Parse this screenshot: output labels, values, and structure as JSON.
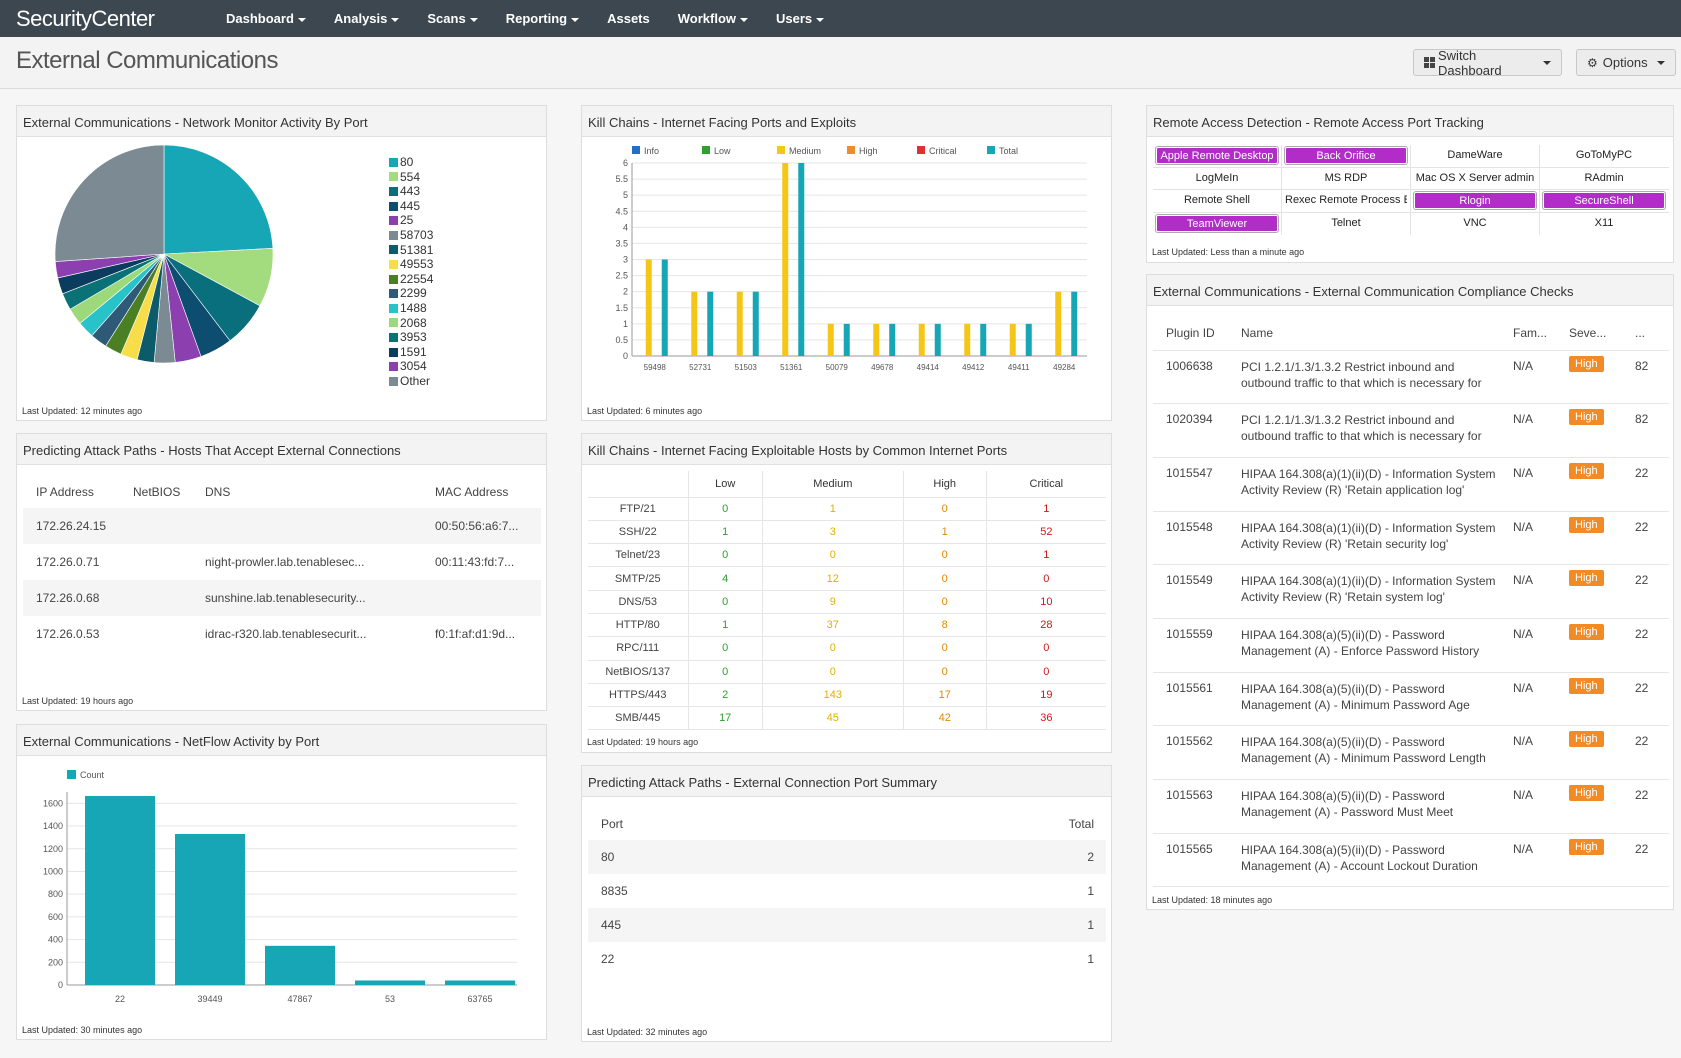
{
  "app": {
    "logo": "SecurityCenter",
    "page_title": "External Communications"
  },
  "nav": [
    "Dashboard",
    "Analysis",
    "Scans",
    "Reporting",
    "Assets",
    "Workflow",
    "Users"
  ],
  "nav_dropdown": [
    true,
    true,
    true,
    true,
    false,
    true,
    true
  ],
  "toolbar": {
    "switch_dashboard": "Switch Dashboard",
    "options": "Options"
  },
  "pie_panel": {
    "title": "External Communications - Network Monitor Activity By Port",
    "updated": "Last Updated: 12 minutes ago",
    "legend": [
      "80",
      "554",
      "443",
      "445",
      "25",
      "58703",
      "51381",
      "49553",
      "22554",
      "2299",
      "1488",
      "2068",
      "3953",
      "1591",
      "3054",
      "Other"
    ],
    "colors": [
      "#17a6b6",
      "#a3dc7f",
      "#0a6f7c",
      "#0c4d70",
      "#8c40b0",
      "#7b8a93",
      "#0c5b6a",
      "#f7dd4a",
      "#4b7f24",
      "#2e5a78",
      "#28c2c9",
      "#9cd97a",
      "#0a7277",
      "#0b3c5d",
      "#8c40b0",
      "#7b8a93"
    ]
  },
  "chart_data": [
    {
      "type": "pie",
      "title": "External Communications - Network Monitor Activity By Port",
      "labels": [
        "80",
        "554",
        "443",
        "445",
        "25",
        "58703",
        "51381",
        "49553",
        "22554",
        "2299",
        "1488",
        "2068",
        "3953",
        "1591",
        "3054",
        "Other"
      ],
      "values": [
        25,
        9,
        7,
        5,
        4,
        3.2,
        2.6,
        2.6,
        2.6,
        2.6,
        2.6,
        2.6,
        2.6,
        2.5,
        2.5,
        27
      ]
    },
    {
      "type": "bar",
      "title": "Kill Chains - Internet Facing Ports and Exploits",
      "categories": [
        "59498",
        "52731",
        "51503",
        "51361",
        "50079",
        "49678",
        "49414",
        "49412",
        "49411",
        "49284"
      ],
      "series": [
        {
          "name": "Info",
          "color": "#2ea02e",
          "values": [
            0,
            0,
            0,
            0,
            0,
            0,
            0,
            0,
            0,
            0
          ]
        },
        {
          "name": "Low",
          "color": "#2ea02e",
          "values": [
            0,
            0,
            0,
            0,
            0,
            0,
            0,
            0,
            0,
            0
          ]
        },
        {
          "name": "Medium",
          "color": "#f5c518",
          "values": [
            3,
            2,
            2,
            6,
            1,
            1,
            1,
            1,
            1,
            2
          ]
        },
        {
          "name": "High",
          "color": "#f28a25",
          "values": [
            0,
            0,
            0,
            0,
            0,
            0,
            0,
            0,
            0,
            0
          ]
        },
        {
          "name": "Critical",
          "color": "#e03030",
          "values": [
            0,
            0,
            0,
            0,
            0,
            0,
            0,
            0,
            0,
            0
          ]
        },
        {
          "name": "Total",
          "color": "#17a6b6",
          "values": [
            3,
            2,
            2,
            6,
            1,
            1,
            1,
            1,
            1,
            2
          ]
        }
      ],
      "yticks": [
        "0",
        "0.5",
        "1",
        "1.5",
        "2",
        "2.5",
        "3",
        "3.5",
        "4",
        "4.5",
        "5",
        "5.5",
        "6"
      ],
      "ylim": [
        0,
        6
      ]
    },
    {
      "type": "bar",
      "title": "External Communications - NetFlow Activity by Port",
      "categories": [
        "22",
        "39449",
        "47867",
        "53",
        "63765"
      ],
      "series": [
        {
          "name": "Count",
          "color": "#17a6b6",
          "values": [
            1665,
            1330,
            345,
            40,
            40
          ]
        }
      ],
      "yticks": [
        "0",
        "200",
        "400",
        "600",
        "800",
        "1000",
        "1200",
        "1400",
        "1600"
      ],
      "ylim": [
        0,
        1700
      ]
    }
  ],
  "killchain_panel": {
    "title": "Kill Chains - Internet Facing Ports and Exploits",
    "updated": "Last Updated: 6 minutes ago",
    "legend_labels": [
      "Info",
      "Low",
      "Medium",
      "High",
      "Critical",
      "Total"
    ],
    "legend_colors": [
      "#1f6fd1",
      "#2ea02e",
      "#f5c518",
      "#f28a25",
      "#e03030",
      "#17a6b6"
    ]
  },
  "netflow_panel": {
    "title": "External Communications - NetFlow Activity by Port",
    "updated": "Last Updated: 30 minutes ago",
    "legend": "Count"
  },
  "hosts_panel": {
    "title": "Predicting Attack Paths - Hosts That Accept External Connections",
    "headers": [
      "IP Address",
      "NetBIOS",
      "DNS",
      "MAC Address"
    ],
    "rows": [
      [
        "172.26.24.15",
        "",
        "",
        "00:50:56:a6:7..."
      ],
      [
        "172.26.0.71",
        "",
        "night-prowler.lab.tenablesec...",
        "00:11:43:fd:7..."
      ],
      [
        "172.26.0.68",
        "",
        "sunshine.lab.tenablesecurity...",
        ""
      ],
      [
        "172.26.0.53",
        "",
        "idrac-r320.lab.tenablesecurit...",
        "f0:1f:af:d1:9d..."
      ]
    ],
    "updated": "Last Updated: 19 hours ago"
  },
  "exploitable_panel": {
    "title": "Kill Chains - Internet Facing Exploitable Hosts by Common Internet Ports",
    "headers": [
      "",
      "Low",
      "Medium",
      "High",
      "Critical"
    ],
    "header_colors": [
      "#444",
      "#444",
      "#444",
      "#444",
      "#444"
    ],
    "value_colors": [
      "#2ea02e",
      "#e0b100",
      "#e08a00",
      "#cc1a1a"
    ],
    "rows": [
      [
        "FTP/21",
        "0",
        "1",
        "0",
        "1"
      ],
      [
        "SSH/22",
        "1",
        "3",
        "1",
        "52"
      ],
      [
        "Telnet/23",
        "0",
        "0",
        "0",
        "1"
      ],
      [
        "SMTP/25",
        "4",
        "12",
        "0",
        "0"
      ],
      [
        "DNS/53",
        "0",
        "9",
        "0",
        "10"
      ],
      [
        "HTTP/80",
        "1",
        "37",
        "8",
        "28"
      ],
      [
        "RPC/111",
        "0",
        "0",
        "0",
        "0"
      ],
      [
        "NetBIOS/137",
        "0",
        "0",
        "0",
        "0"
      ],
      [
        "HTTPS/443",
        "2",
        "143",
        "17",
        "19"
      ],
      [
        "SMB/445",
        "17",
        "45",
        "42",
        "36"
      ]
    ],
    "updated": "Last Updated: 19 hours ago"
  },
  "portsummary_panel": {
    "title": "Predicting Attack Paths - External Connection Port Summary",
    "headers": [
      "Port",
      "Total"
    ],
    "rows": [
      [
        "80",
        "2"
      ],
      [
        "8835",
        "1"
      ],
      [
        "445",
        "1"
      ],
      [
        "22",
        "1"
      ]
    ],
    "updated": "Last Updated: 32 minutes ago"
  },
  "remote_panel": {
    "title": "Remote Access Detection - Remote Access Port Tracking",
    "cells": [
      {
        "label": "Apple Remote Desktop",
        "on": true
      },
      {
        "label": "Back Orifice",
        "on": true
      },
      {
        "label": "DameWare",
        "on": false
      },
      {
        "label": "GoToMyPC",
        "on": false
      },
      {
        "label": "LogMeIn",
        "on": false
      },
      {
        "label": "MS RDP",
        "on": false
      },
      {
        "label": "Mac OS X Server admin",
        "on": false
      },
      {
        "label": "RAdmin",
        "on": false
      },
      {
        "label": "Remote Shell",
        "on": false
      },
      {
        "label": "Rexec Remote Process Exec",
        "on": false
      },
      {
        "label": "Rlogin",
        "on": true
      },
      {
        "label": "SecureShell",
        "on": true
      },
      {
        "label": "TeamViewer",
        "on": true
      },
      {
        "label": "Telnet",
        "on": false
      },
      {
        "label": "VNC",
        "on": false
      },
      {
        "label": "X11",
        "on": false
      }
    ],
    "updated": "Last Updated: Less than a minute ago"
  },
  "compliance_panel": {
    "title": "External Communications - External Communication Compliance Checks",
    "headers": [
      "Plugin ID",
      "Name",
      "Fam...",
      "Seve...",
      "..."
    ],
    "rows": [
      [
        "1006638",
        "PCI 1.2.1/1.3/1.3.2 Restrict inbound and",
        "outbound traffic to that which is necessary for",
        "N/A",
        "High",
        "82"
      ],
      [
        "1020394",
        "PCI 1.2.1/1.3/1.3.2 Restrict inbound and",
        "outbound traffic to that which is necessary for",
        "N/A",
        "High",
        "82"
      ],
      [
        "1015547",
        "HIPAA 164.308(a)(1)(ii)(D) - Information System",
        "Activity Review (R) 'Retain application log'",
        "N/A",
        "High",
        "22"
      ],
      [
        "1015548",
        "HIPAA 164.308(a)(1)(ii)(D) - Information System",
        "Activity Review (R) 'Retain security log'",
        "N/A",
        "High",
        "22"
      ],
      [
        "1015549",
        "HIPAA 164.308(a)(1)(ii)(D) - Information System",
        "Activity Review (R) 'Retain system log'",
        "N/A",
        "High",
        "22"
      ],
      [
        "1015559",
        "HIPAA 164.308(a)(5)(ii)(D) - Password",
        "Management (A) - Enforce Password History",
        "N/A",
        "High",
        "22"
      ],
      [
        "1015561",
        "HIPAA 164.308(a)(5)(ii)(D) - Password",
        "Management (A) - Minimum Password Age",
        "N/A",
        "High",
        "22"
      ],
      [
        "1015562",
        "HIPAA 164.308(a)(5)(ii)(D) - Password",
        "Management (A) - Minimum Password Length",
        "N/A",
        "High",
        "22"
      ],
      [
        "1015563",
        "HIPAA 164.308(a)(5)(ii)(D) - Password",
        "Management (A) - Password Must Meet",
        "N/A",
        "High",
        "22"
      ],
      [
        "1015565",
        "HIPAA 164.308(a)(5)(ii)(D) - Password",
        "Management (A) - Account Lockout Duration",
        "N/A",
        "High",
        "22"
      ]
    ],
    "updated": "Last Updated: 18 minutes ago"
  }
}
